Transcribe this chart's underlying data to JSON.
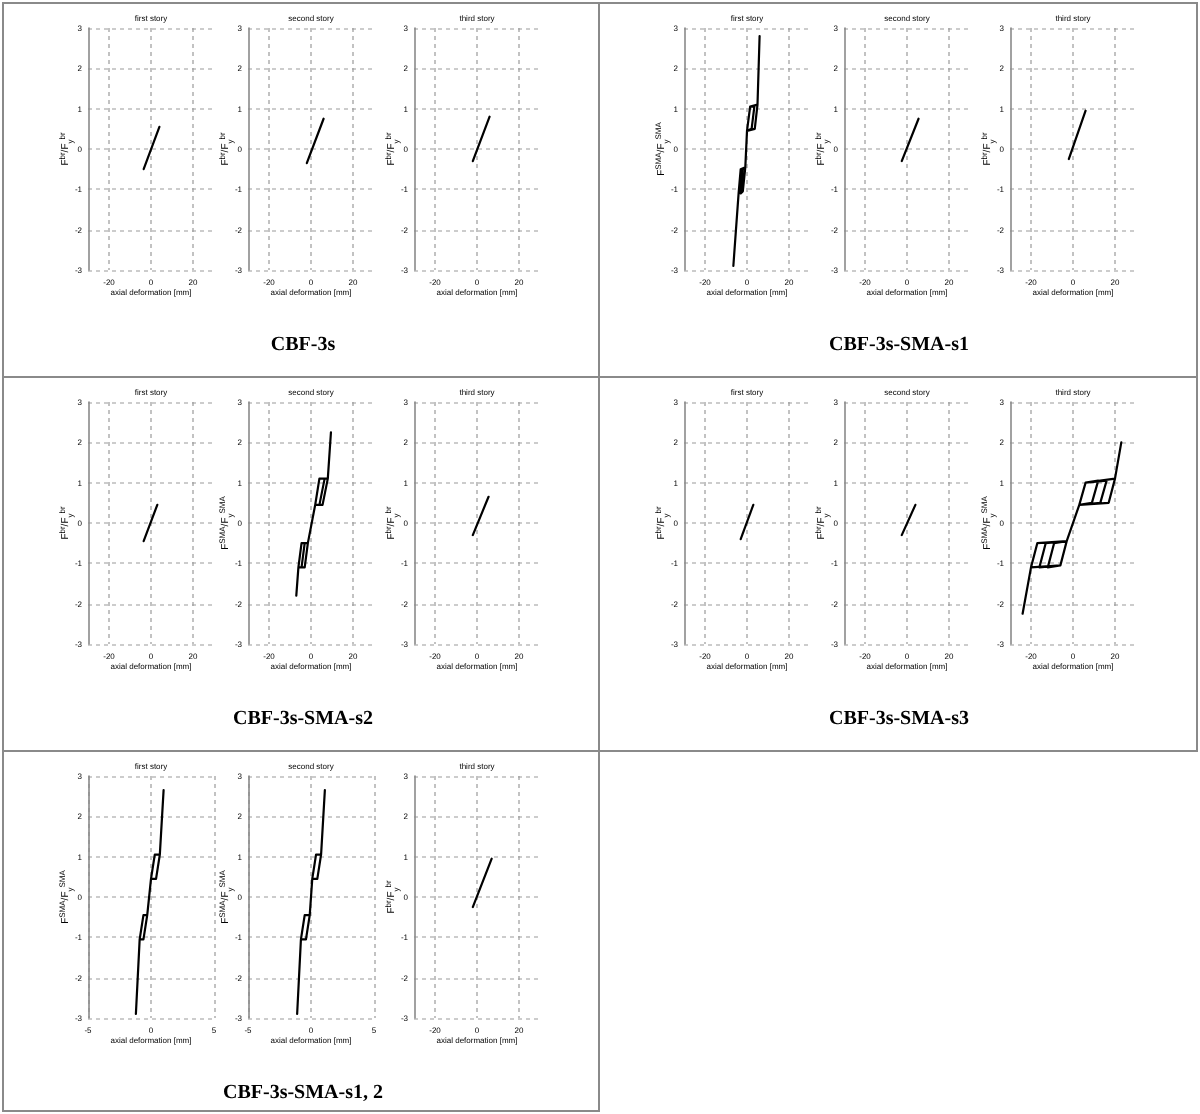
{
  "chart_data": [
    {
      "type": "line",
      "title": "first story",
      "xlabel": "axial deformation [mm]",
      "ylabel": "F$^{br}$/F$_{y}$$^{br}$",
      "xlim": [
        -30,
        30
      ],
      "xticks": [
        -20,
        0,
        20
      ],
      "ylim": [
        -3,
        3
      ],
      "yticks": [
        -3,
        -2,
        -1,
        0,
        1,
        2,
        3
      ],
      "grid": true,
      "color": "#000000",
      "x": [
        -3.5,
        4
      ],
      "values": [
        -0.5,
        0.55
      ]
    },
    {
      "type": "line",
      "title": "second story",
      "xlabel": "axial deformation [mm]",
      "ylabel": "F$^{br}$/F$_{y}$$^{br}$",
      "xlim": [
        -30,
        30
      ],
      "xticks": [
        -20,
        0,
        20
      ],
      "ylim": [
        -3,
        3
      ],
      "yticks": [
        -3,
        -2,
        -1,
        0,
        1,
        2,
        3
      ],
      "grid": true,
      "color": "#000000",
      "x": [
        -2,
        6
      ],
      "values": [
        -0.35,
        0.75
      ],
      "annotations": [
        "CBF-3s"
      ]
    },
    {
      "type": "line",
      "title": "third story",
      "xlabel": "axial deformation [mm]",
      "ylabel": "F$^{br}$/F$_{y}$$^{br}$",
      "xlim": [
        -30,
        30
      ],
      "xticks": [
        -20,
        0,
        20
      ],
      "ylim": [
        -3,
        3
      ],
      "yticks": [
        -3,
        -2,
        -1,
        0,
        1,
        2,
        3
      ],
      "grid": true,
      "color": "#000000",
      "x": [
        -2,
        6
      ],
      "values": [
        -0.3,
        0.8
      ]
    },
    {
      "type": "line",
      "title": "first story",
      "xlabel": "axial deformation [mm]",
      "ylabel": "F$^{SMA}$/F$_{y}$$^{SMA}$",
      "xlim": [
        -30,
        30
      ],
      "xticks": [
        -20,
        0,
        20
      ],
      "ylim": [
        -3,
        3
      ],
      "yticks": [
        -3,
        -2,
        -1,
        0,
        1,
        2,
        3
      ],
      "grid": true,
      "color": "#000000",
      "x": [
        -6.5,
        -4,
        -3,
        -0.8,
        0,
        1.5,
        5,
        6,
        5,
        3.7,
        0,
        1.5,
        3.5,
        2.2,
        0,
        -0.8,
        -2,
        -4,
        -6.5,
        -4,
        -3,
        -0.8,
        -2,
        -3,
        -2,
        -0.8
      ],
      "values": [
        -2.9,
        -1.1,
        -0.5,
        -0.45,
        0.45,
        1.05,
        1.1,
        2.8,
        1.1,
        0.5,
        0.45,
        1.05,
        1.05,
        0.5,
        0.45,
        -0.45,
        -1.05,
        -1.1,
        -2.9,
        -1.1,
        -0.5,
        -0.45,
        -1.05,
        -1.1,
        -0.5,
        -0.45
      ]
    },
    {
      "type": "line",
      "title": "second story",
      "xlabel": "axial deformation [mm]",
      "ylabel": "F$^{br}$/F$_{y}$$^{br}$",
      "xlim": [
        -30,
        30
      ],
      "xticks": [
        -20,
        0,
        20
      ],
      "ylim": [
        -3,
        3
      ],
      "yticks": [
        -3,
        -2,
        -1,
        0,
        1,
        2,
        3
      ],
      "grid": true,
      "color": "#000000",
      "x": [
        -2.5,
        5.5
      ],
      "values": [
        -0.3,
        0.75
      ],
      "annotations": [
        "CBF-3s-SMA-s1"
      ]
    },
    {
      "type": "line",
      "title": "third story",
      "xlabel": "axial deformation [mm]",
      "ylabel": "F$^{br}$/F$_{y}$$^{br}$",
      "xlim": [
        -30,
        30
      ],
      "xticks": [
        -20,
        0,
        20
      ],
      "ylim": [
        -3,
        3
      ],
      "yticks": [
        -3,
        -2,
        -1,
        0,
        1,
        2,
        3
      ],
      "grid": true,
      "color": "#000000",
      "x": [
        -2,
        6
      ],
      "values": [
        -0.25,
        0.95
      ]
    },
    {
      "type": "line",
      "title": "first story",
      "xlabel": "axial deformation [mm]",
      "ylabel": "F$^{br}$/F$_{y}$$^{br}$",
      "xlim": [
        -30,
        30
      ],
      "xticks": [
        -20,
        0,
        20
      ],
      "ylim": [
        -3,
        3
      ],
      "yticks": [
        -3,
        -2,
        -1,
        0,
        1,
        2,
        3
      ],
      "grid": true,
      "color": "#000000",
      "x": [
        -3.5,
        3
      ],
      "values": [
        -0.45,
        0.45
      ]
    },
    {
      "type": "line",
      "title": "second story",
      "xlabel": "axial deformation [mm]",
      "ylabel": "F$^{SMA}$/F$_{y}$$^{SMA}$",
      "xlim": [
        -30,
        30
      ],
      "xticks": [
        -20,
        0,
        20
      ],
      "ylim": [
        -3,
        3
      ],
      "yticks": [
        -3,
        -2,
        -1,
        0,
        1,
        2,
        3
      ],
      "grid": true,
      "color": "#000000",
      "x": [
        -7,
        -6,
        -4.5,
        -1.5,
        2,
        4,
        8,
        9.5,
        8,
        5.5,
        2,
        4,
        6.5,
        4,
        2,
        -1.5,
        -3,
        -6,
        -7,
        -6,
        -4.5,
        -1.5,
        -3,
        -4.5,
        -3,
        -1.5
      ],
      "values": [
        -1.8,
        -1.1,
        -0.5,
        -0.5,
        0.45,
        1.1,
        1.1,
        2.25,
        1.1,
        0.45,
        0.45,
        1.1,
        1.1,
        0.45,
        0.45,
        -0.5,
        -1.1,
        -1.1,
        -1.8,
        -1.1,
        -0.5,
        -0.5,
        -1.1,
        -1.1,
        -0.5,
        -0.5
      ],
      "annotations": [
        "CBF-3s-SMA-s2"
      ]
    },
    {
      "type": "line",
      "title": "third story",
      "xlabel": "axial deformation [mm]",
      "ylabel": "F$^{br}$/F$_{y}$$^{br}$",
      "xlim": [
        -30,
        30
      ],
      "xticks": [
        -20,
        0,
        20
      ],
      "ylim": [
        -3,
        3
      ],
      "yticks": [
        -3,
        -2,
        -1,
        0,
        1,
        2,
        3
      ],
      "grid": true,
      "color": "#000000",
      "x": [
        -2,
        5.5
      ],
      "values": [
        -0.3,
        0.65
      ]
    },
    {
      "type": "line",
      "title": "first story",
      "xlabel": "axial deformation [mm]",
      "ylabel": "F$^{br}$/F$_{y}$$^{br}$",
      "xlim": [
        -30,
        30
      ],
      "xticks": [
        -20,
        0,
        20
      ],
      "ylim": [
        -3,
        3
      ],
      "yticks": [
        -3,
        -2,
        -1,
        0,
        1,
        2,
        3
      ],
      "grid": true,
      "color": "#000000",
      "x": [
        -3,
        3
      ],
      "values": [
        -0.4,
        0.45
      ]
    },
    {
      "type": "line",
      "title": "second story",
      "xlabel": "axial deformation [mm]",
      "ylabel": "F$^{br}$/F$_{y}$$^{br}$",
      "xlim": [
        -30,
        30
      ],
      "xticks": [
        -20,
        0,
        20
      ],
      "ylim": [
        -3,
        3
      ],
      "yticks": [
        -3,
        -2,
        -1,
        0,
        1,
        2,
        3
      ],
      "grid": true,
      "color": "#000000",
      "x": [
        -2.5,
        4
      ],
      "values": [
        -0.3,
        0.45
      ],
      "annotations": [
        "CBF-3s-SMA-s3"
      ]
    },
    {
      "type": "line",
      "title": "third story",
      "xlabel": "axial deformation [mm]",
      "ylabel": "F$^{SMA}$/F$_{y}$$^{SMA}$",
      "xlim": [
        -30,
        30
      ],
      "xticks": [
        -20,
        0,
        20
      ],
      "ylim": [
        -3,
        3
      ],
      "yticks": [
        -3,
        -2,
        -1,
        0,
        1,
        2,
        3
      ],
      "grid": true,
      "color": "#000000",
      "x": [
        -24,
        -20,
        -17,
        -3,
        3,
        6,
        20,
        23,
        20,
        17,
        3,
        6,
        16,
        13,
        3,
        6,
        12,
        9,
        3,
        -3,
        -6,
        -20,
        -24,
        -20,
        -17,
        -3,
        -6,
        -16,
        -13,
        -3,
        -6,
        -12,
        -9,
        -3
      ],
      "values": [
        -2.25,
        -1.1,
        -0.5,
        -0.45,
        0.45,
        1,
        1.1,
        2,
        1.1,
        0.5,
        0.45,
        1,
        1.05,
        0.5,
        0.45,
        1,
        1.05,
        0.5,
        0.45,
        -0.45,
        -1.05,
        -1.1,
        -2.25,
        -1.1,
        -0.5,
        -0.45,
        -1.05,
        -1.1,
        -0.5,
        -0.45,
        -1.05,
        -1.1,
        -0.5,
        -0.45
      ]
    },
    {
      "type": "line",
      "title": "first story",
      "xlabel": "axial deformation [mm]",
      "ylabel": "F$^{SMA}$/F$_{y}$$^{SMA}$",
      "xlim": [
        -5,
        5
      ],
      "xticks": [
        -5,
        0,
        5
      ],
      "ylim": [
        -3,
        3
      ],
      "yticks": [
        -3,
        -2,
        -1,
        0,
        1,
        2,
        3
      ],
      "grid": true,
      "color": "#000000",
      "x": [
        -1.2,
        -0.9,
        -0.6,
        -0.3,
        0,
        0.3,
        0.7,
        1,
        0.7,
        0.4,
        0,
        -0.3,
        -0.6,
        -0.9
      ],
      "values": [
        -2.9,
        -1.05,
        -0.45,
        -0.45,
        0.45,
        1.05,
        1.05,
        2.65,
        1.05,
        0.45,
        0.45,
        -0.45,
        -1.05,
        -1.05
      ]
    },
    {
      "type": "line",
      "title": "second story",
      "xlabel": "axial deformation [mm]",
      "ylabel": "F$^{SMA}$/F$_{y}$$^{SMA}$",
      "xlim": [
        -5,
        5
      ],
      "xticks": [
        -5,
        0,
        5
      ],
      "ylim": [
        -3,
        3
      ],
      "yticks": [
        -3,
        -2,
        -1,
        0,
        1,
        2,
        3
      ],
      "grid": true,
      "color": "#000000",
      "x": [
        -1.1,
        -0.8,
        -0.5,
        -0.1,
        0.1,
        0.4,
        0.8,
        1.1,
        0.8,
        0.5,
        0.1,
        -0.1,
        -0.4,
        -0.8
      ],
      "values": [
        -2.9,
        -1.05,
        -0.45,
        -0.45,
        0.45,
        1.05,
        1.05,
        2.65,
        1.05,
        0.45,
        0.45,
        -0.45,
        -1.05,
        -1.05
      ],
      "annotations": [
        "CBF-3s-SMA-s1, 2"
      ]
    },
    {
      "type": "line",
      "title": "third story",
      "xlabel": "axial deformation [mm]",
      "ylabel": "F$^{br}$/F$_{y}$$^{br}$",
      "xlim": [
        -30,
        30
      ],
      "xticks": [
        -20,
        0,
        20
      ],
      "ylim": [
        -3,
        3
      ],
      "yticks": [
        -3,
        -2,
        -1,
        0,
        1,
        2,
        3
      ],
      "grid": true,
      "color": "#000000",
      "x": [
        -2,
        7
      ],
      "values": [
        -0.25,
        0.95
      ]
    }
  ]
}
